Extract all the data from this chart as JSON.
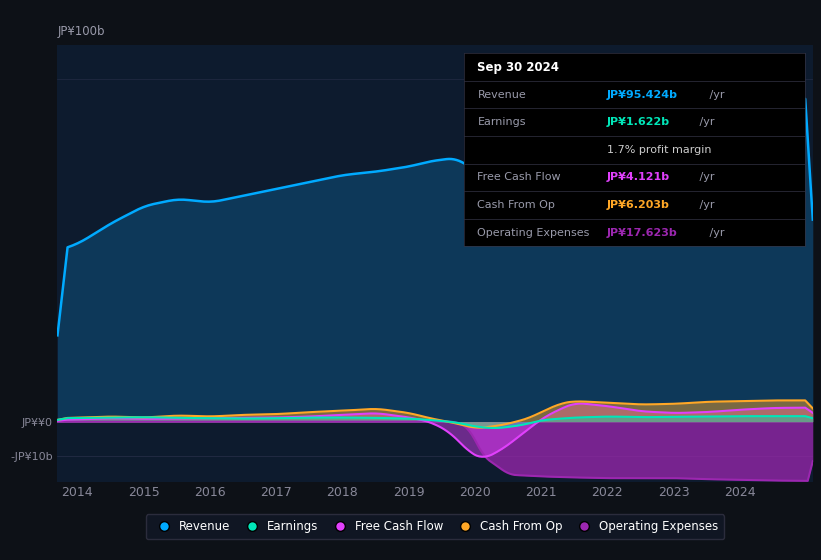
{
  "background_color": "#0d1117",
  "plot_bg_color": "#0d1b2e",
  "colors": {
    "revenue": "#00aaff",
    "revenue_fill": "#0a3a5a",
    "earnings": "#00e6b8",
    "free_cash_flow": "#e040fb",
    "cash_from_op": "#ffa726",
    "operating_expenses": "#9c27b0"
  },
  "x_ticks": [
    2014,
    2015,
    2016,
    2017,
    2018,
    2019,
    2020,
    2021,
    2022,
    2023,
    2024
  ],
  "xlim": [
    2013.7,
    2025.1
  ],
  "ylim": [
    -0.175,
    1.1
  ],
  "ytick_vals": [
    0.0,
    -0.1
  ],
  "ytick_labels": [
    "JP¥¥0",
    "-JP¥10b"
  ],
  "top_label": "JP¥100b",
  "info_box": {
    "date": "Sep 30 2024",
    "rows": [
      {
        "label": "Revenue",
        "value": "JP¥95.424b",
        "color": "#00aaff",
        "suffix": " /yr"
      },
      {
        "label": "Earnings",
        "value": "JP¥1.622b",
        "color": "#00e6b8",
        "suffix": " /yr"
      },
      {
        "label": "",
        "value": "1.7% profit margin",
        "color": "#cccccc",
        "suffix": ""
      },
      {
        "label": "Free Cash Flow",
        "value": "JP¥4.121b",
        "color": "#e040fb",
        "suffix": " /yr"
      },
      {
        "label": "Cash From Op",
        "value": "JP¥6.203b",
        "color": "#ffa726",
        "suffix": " /yr"
      },
      {
        "label": "Operating Expenses",
        "value": "JP¥17.623b",
        "color": "#9c27b0",
        "suffix": " /yr"
      }
    ]
  },
  "legend_labels": [
    "Revenue",
    "Earnings",
    "Free Cash Flow",
    "Cash From Op",
    "Operating Expenses"
  ],
  "legend_colors": [
    "#00aaff",
    "#00e6b8",
    "#e040fb",
    "#ffa726",
    "#9c27b0"
  ]
}
